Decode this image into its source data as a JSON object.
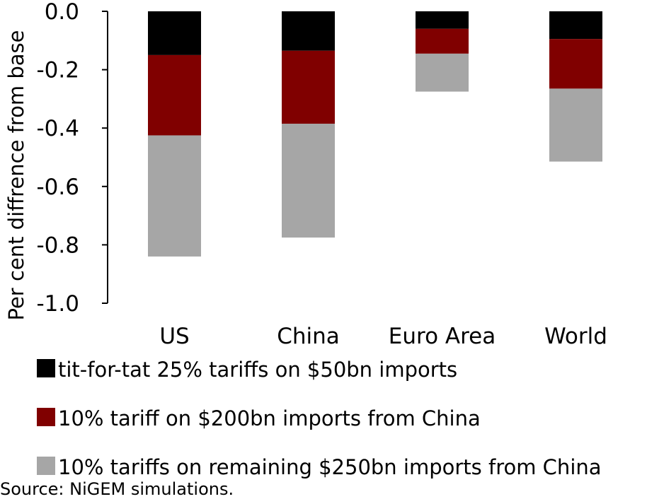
{
  "chart_data": {
    "type": "bar",
    "stacked": true,
    "categories": [
      "US",
      "China",
      "Euro Area",
      "World"
    ],
    "series": [
      {
        "name": "tit-for-tat 25% tariffs on $50bn imports",
        "color": "#000000",
        "values": [
          -0.15,
          -0.135,
          -0.06,
          -0.095
        ]
      },
      {
        "name": "10% tariff on $200bn imports from China",
        "color": "#800000",
        "values": [
          -0.275,
          -0.25,
          -0.085,
          -0.17
        ]
      },
      {
        "name": "10% tariffs on remaining $250bn imports from China",
        "color": "#a6a6a6",
        "values": [
          -0.415,
          -0.39,
          -0.13,
          -0.25
        ]
      }
    ],
    "ylabel": "Per cent diffrence from base",
    "xlabel": "",
    "ylim": [
      -1.0,
      0.0
    ],
    "yticks": [
      0.0,
      -0.2,
      -0.4,
      -0.6,
      -0.8,
      -1.0
    ],
    "ytick_labels": [
      "0.0",
      "-0.2",
      "-0.4",
      "-0.6",
      "-0.8",
      "-1.0"
    ],
    "grid": false,
    "legend_position": "bottom",
    "source": "Source: NiGEM simulations."
  }
}
